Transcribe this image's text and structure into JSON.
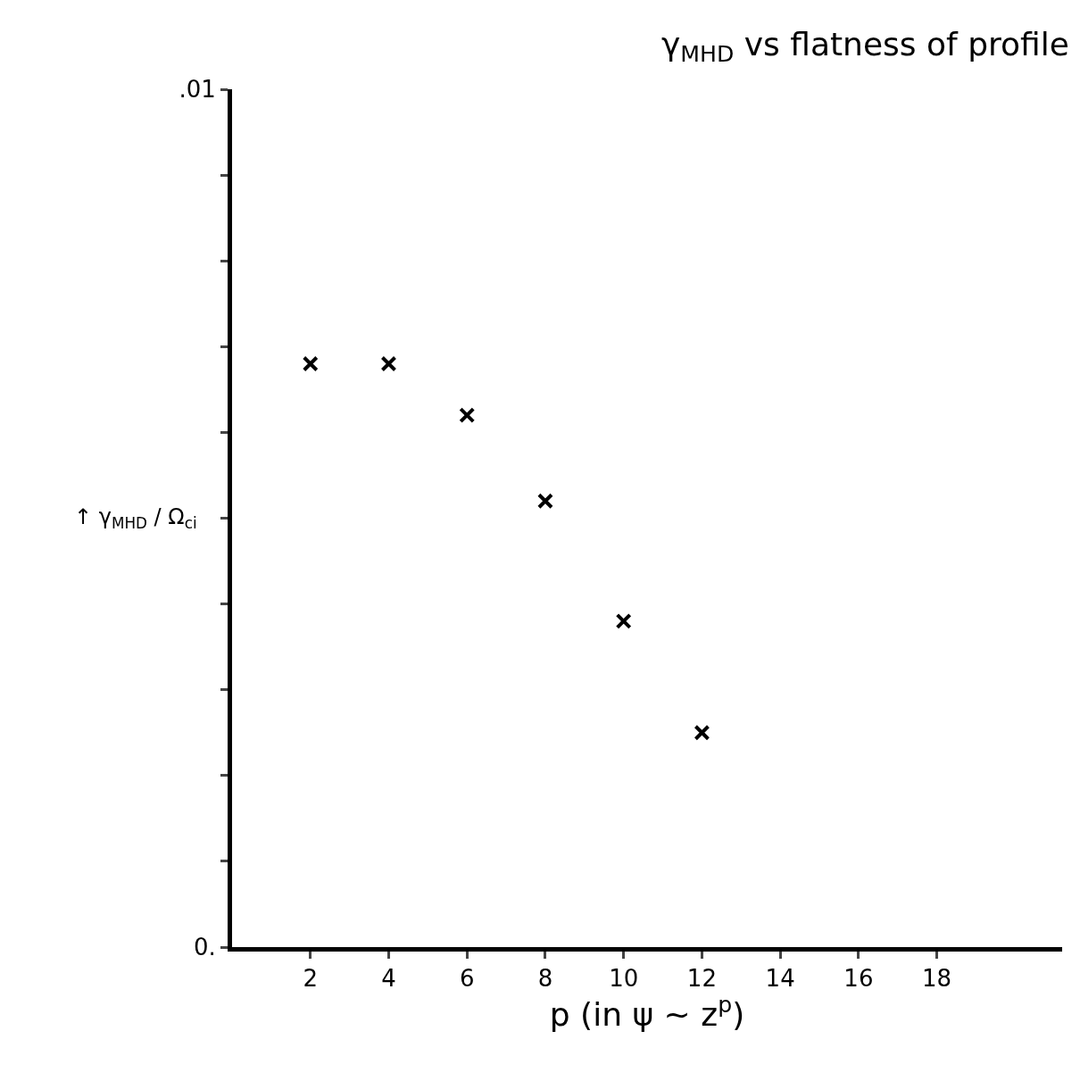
{
  "chart_data": {
    "type": "scatter",
    "title": "γ$_{MHD}$ vs flatness of profile",
    "xlabel": "p (in ψ ~ z$^{p}$)",
    "ylabel": "↑ γ$_{MHD}$ / Ω$_{ci}$",
    "x": [
      2,
      4,
      6,
      8,
      10,
      12
    ],
    "series": [
      {
        "color": "#000000",
        "values": [
          0.0068,
          0.0068,
          0.0062,
          0.0052,
          0.0038,
          0.0025
        ]
      }
    ],
    "marker": "cross",
    "xlim": [
      0,
      21.2
    ],
    "xticks": [
      2,
      4,
      6,
      8,
      10,
      12,
      14,
      16,
      18
    ],
    "ylim": [
      0,
      0.01
    ],
    "yticks": [
      {
        "value": 0,
        "label": "0."
      },
      {
        "value": 0.001,
        "label": null
      },
      {
        "value": 0.002,
        "label": null
      },
      {
        "value": 0.003,
        "label": null
      },
      {
        "value": 0.004,
        "label": null
      },
      {
        "value": 0.005,
        "label": null
      },
      {
        "value": 0.006,
        "label": null
      },
      {
        "value": 0.007,
        "label": null
      },
      {
        "value": 0.008,
        "label": null
      },
      {
        "value": 0.009,
        "label": null
      },
      {
        "value": 0.01,
        "label": ".01"
      }
    ]
  }
}
